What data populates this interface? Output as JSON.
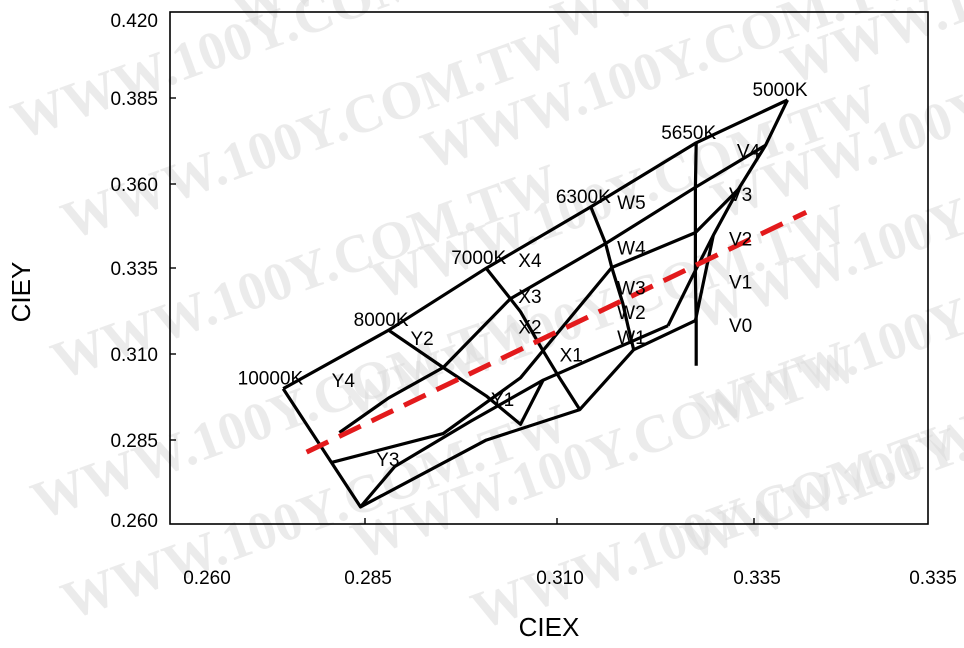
{
  "chart_data": {
    "type": "line",
    "title": "",
    "xlabel": "CIEX",
    "ylabel": "CIEY",
    "x_tick_labels": [
      "0.260",
      "0.285",
      "0.310",
      "0.335",
      "0.335"
    ],
    "y_tick_labels": [
      "0.420",
      "0.385",
      "0.360",
      "0.335",
      "0.310",
      "0.285",
      "0.260"
    ],
    "grid": false,
    "watermark": "WWW.100Y.COM.TW",
    "series": [
      {
        "name": "",
        "color": "#e31a1c",
        "dashed": true,
        "points": [
          [
            0.275,
            0.2845
          ],
          [
            0.339,
            0.3545
          ]
        ]
      }
    ],
    "grid_lines": [
      [
        [
          0.272,
          0.303
        ],
        [
          0.2855,
          0.3201
        ],
        [
          0.298,
          0.3382
        ],
        [
          0.3114,
          0.3561
        ],
        [
          0.3249,
          0.3748
        ],
        [
          0.3366,
          0.3873
        ]
      ],
      [
        [
          0.3366,
          0.3873
        ],
        [
          0.3338,
          0.3741
        ],
        [
          0.3303,
          0.3612
        ],
        [
          0.3271,
          0.3478
        ],
        [
          0.3242,
          0.3348
        ],
        [
          0.3213,
          0.3214
        ]
      ],
      [
        [
          0.3213,
          0.3214
        ],
        [
          0.3126,
          0.3128
        ],
        [
          0.3053,
          0.3055
        ],
        [
          0.2961,
          0.2936
        ],
        [
          0.2863,
          0.2803
        ],
        [
          0.2819,
          0.2685
        ],
        [
          0.272,
          0.303
        ]
      ],
      [
        [
          0.298,
          0.3382
        ],
        [
          0.3011,
          0.3293
        ],
        [
          0.3024,
          0.3255
        ],
        [
          0.3051,
          0.3148
        ],
        [
          0.3074,
          0.3062
        ],
        [
          0.31,
          0.2969
        ]
      ],
      [
        [
          0.3114,
          0.3561
        ],
        [
          0.3133,
          0.3454
        ],
        [
          0.3141,
          0.3384
        ],
        [
          0.3155,
          0.3279
        ],
        [
          0.3162,
          0.321
        ],
        [
          0.3169,
          0.3144
        ]
      ],
      [
        [
          0.3249,
          0.3748
        ],
        [
          0.3248,
          0.3618
        ],
        [
          0.3248,
          0.3486
        ],
        [
          0.3248,
          0.3354
        ],
        [
          0.3249,
          0.3229
        ],
        [
          0.3249,
          0.3097
        ]
      ],
      [
        [
          0.2855,
          0.3201
        ],
        [
          0.2925,
          0.3092
        ],
        [
          0.298,
          0.3009
        ],
        [
          0.3024,
          0.2926
        ],
        [
          0.3053,
          0.3055
        ]
      ],
      [
        [
          0.2792,
          0.2902
        ],
        [
          0.2855,
          0.3003
        ],
        [
          0.2925,
          0.3092
        ],
        [
          0.3011,
          0.3293
        ],
        [
          0.3133,
          0.3454
        ],
        [
          0.3248,
          0.3618
        ],
        [
          0.3338,
          0.3741
        ]
      ],
      [
        [
          0.2782,
          0.2815
        ],
        [
          0.2925,
          0.2899
        ],
        [
          0.3024,
          0.3062
        ],
        [
          0.3141,
          0.3384
        ],
        [
          0.3248,
          0.3486
        ],
        [
          0.3303,
          0.3612
        ]
      ],
      [
        [
          0.2819,
          0.2685
        ],
        [
          0.298,
          0.288
        ],
        [
          0.31,
          0.2969
        ],
        [
          0.3169,
          0.3144
        ],
        [
          0.3248,
          0.3229
        ],
        [
          0.3271,
          0.3478
        ]
      ]
    ],
    "labels": [
      {
        "text": "5000K",
        "x": 0.3366,
        "y": 0.3873
      },
      {
        "text": "5650K",
        "x": 0.3249,
        "y": 0.3748
      },
      {
        "text": "6300K",
        "x": 0.3114,
        "y": 0.3561
      },
      {
        "text": "7000K",
        "x": 0.298,
        "y": 0.3382
      },
      {
        "text": "8000K",
        "x": 0.2855,
        "y": 0.3201
      },
      {
        "text": "10000K",
        "x": 0.272,
        "y": 0.303
      },
      {
        "text": "V4",
        "x": 0.3316,
        "y": 0.3705
      },
      {
        "text": "V3",
        "x": 0.3306,
        "y": 0.3578
      },
      {
        "text": "V2",
        "x": 0.3306,
        "y": 0.3448
      },
      {
        "text": "V1",
        "x": 0.3306,
        "y": 0.3322
      },
      {
        "text": "V0",
        "x": 0.3306,
        "y": 0.3195
      },
      {
        "text": "W5",
        "x": 0.3166,
        "y": 0.3555
      },
      {
        "text": "W4",
        "x": 0.3166,
        "y": 0.3422
      },
      {
        "text": "W3",
        "x": 0.3166,
        "y": 0.3305
      },
      {
        "text": "W2",
        "x": 0.3166,
        "y": 0.3233
      },
      {
        "text": "W1",
        "x": 0.3166,
        "y": 0.316
      },
      {
        "text": "X4",
        "x": 0.3036,
        "y": 0.3385
      },
      {
        "text": "X3",
        "x": 0.3036,
        "y": 0.3281
      },
      {
        "text": "X2",
        "x": 0.3036,
        "y": 0.3191
      },
      {
        "text": "X1",
        "x": 0.3089,
        "y": 0.311
      },
      {
        "text": "Y2",
        "x": 0.2898,
        "y": 0.3158
      },
      {
        "text": "Y1",
        "x": 0.3001,
        "y": 0.2979
      },
      {
        "text": "Y4",
        "x": 0.2797,
        "y": 0.3035
      },
      {
        "text": "Y3",
        "x": 0.2854,
        "y": 0.2805
      }
    ]
  }
}
